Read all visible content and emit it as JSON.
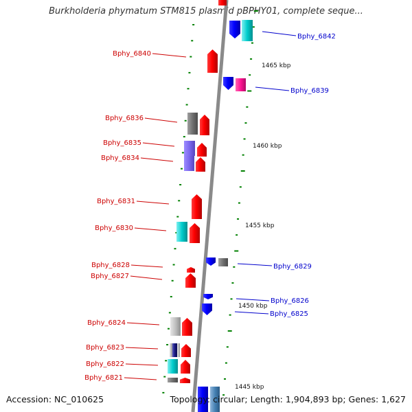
{
  "title": "Burkholderia phymatum STM815 plasmid pBPHY01, complete seque...",
  "footer": {
    "accession": "Accession: NC_010625",
    "summary": "Topology: circular; Length: 1,904,893 bp; Genes: 1,627"
  },
  "axis": {
    "ticks": [
      "1465 kbp",
      "1460 kbp",
      "1455 kbp",
      "1450 kbp",
      "1445 kbp"
    ]
  },
  "left_genes": [
    {
      "label": "Bphy_6840",
      "color": "#ff0000"
    },
    {
      "label": "Bphy_6836",
      "color": "#ff0000"
    },
    {
      "label": "Bphy_6835",
      "color": "#ff0000"
    },
    {
      "label": "Bphy_6834",
      "color": "#ff0000"
    },
    {
      "label": "Bphy_6831",
      "color": "#ff0000"
    },
    {
      "label": "Bphy_6830",
      "color": "#ff0000"
    },
    {
      "label": "Bphy_6828",
      "color": "#ff0000"
    },
    {
      "label": "Bphy_6827",
      "color": "#ff0000"
    },
    {
      "label": "Bphy_6824",
      "color": "#ff0000"
    },
    {
      "label": "Bphy_6823",
      "color": "#ff0000"
    },
    {
      "label": "Bphy_6822",
      "color": "#ff0000"
    },
    {
      "label": "Bphy_6821",
      "color": "#ff0000"
    }
  ],
  "right_genes": [
    {
      "label": "Bphy_6842",
      "color": "#0000ff"
    },
    {
      "label": "Bphy_6839",
      "color": "#0000ff"
    },
    {
      "label": "Bphy_6829",
      "color": "#0000ff"
    },
    {
      "label": "Bphy_6826",
      "color": "#0000ff"
    },
    {
      "label": "Bphy_6825",
      "color": "#0000ff"
    }
  ],
  "colors": {
    "forward_strand": "#ff0000",
    "reverse_strand": "#0000ff",
    "cog_gray": "#808080",
    "cog_cyan": "#00cccc",
    "cog_purple": "#7b68ee",
    "cog_magenta": "#ff1493",
    "cog_navy": "#1a1a80",
    "cog_lightgray": "#c0c0c0",
    "cog_steelblue": "#4682b4",
    "backbone": "#8a8a8a",
    "tick_mark": "#008000"
  }
}
